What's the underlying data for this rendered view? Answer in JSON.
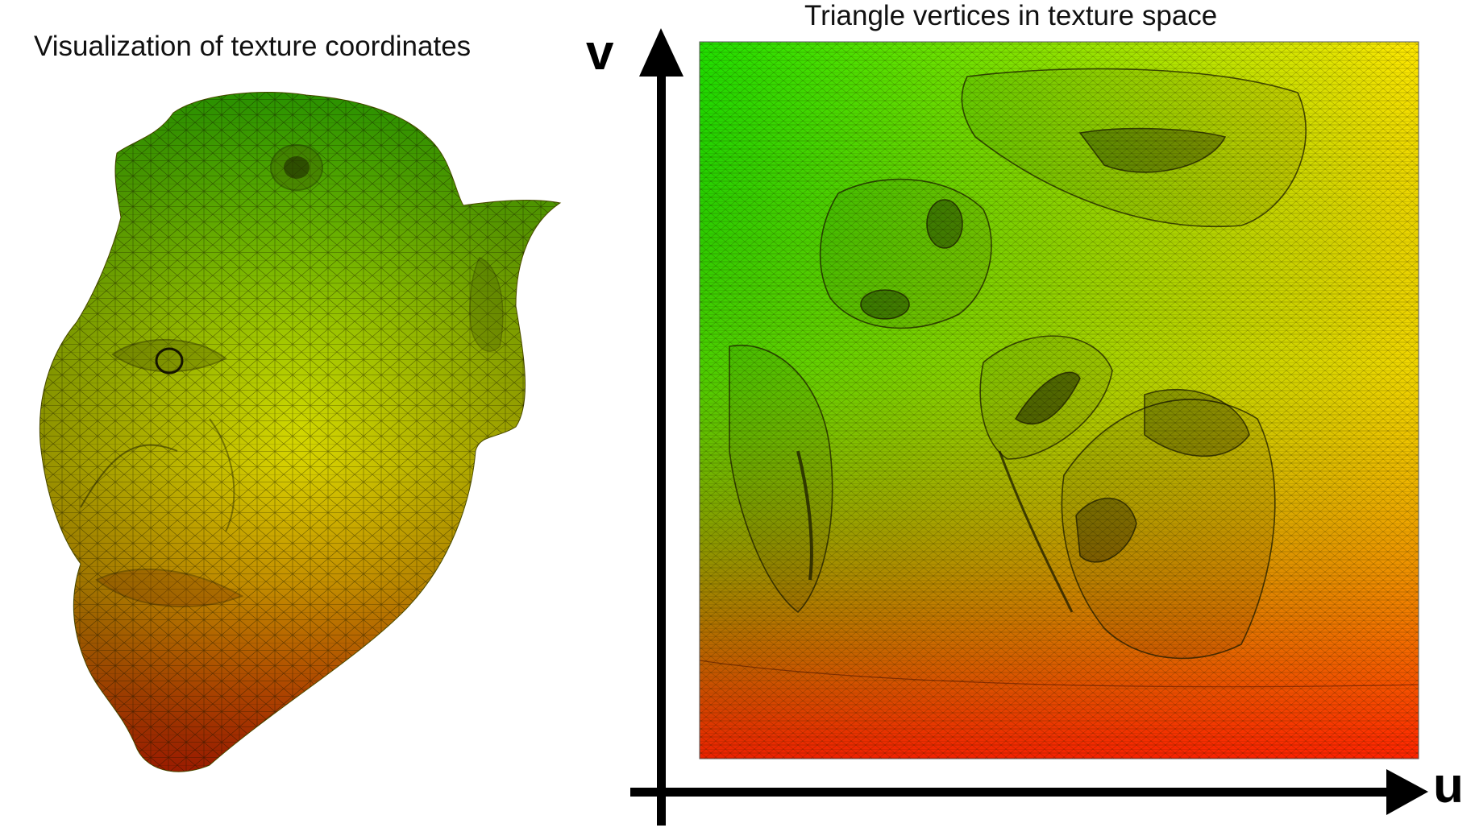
{
  "titles": {
    "left": "Visualization of texture coordinates",
    "right": "Triangle vertices in texture space"
  },
  "axes": {
    "v": "v",
    "u": "u"
  },
  "colors": {
    "green": "#22e000",
    "yellow": "#f2ee00",
    "orange": "#f29000",
    "red": "#ee1c00",
    "mesh_line": "#1a1a00",
    "axis": "#000000"
  },
  "icons": [
    "head-mesh-picture",
    "uv-atlas-picture",
    "v-axis-arrow",
    "u-axis-arrow"
  ]
}
